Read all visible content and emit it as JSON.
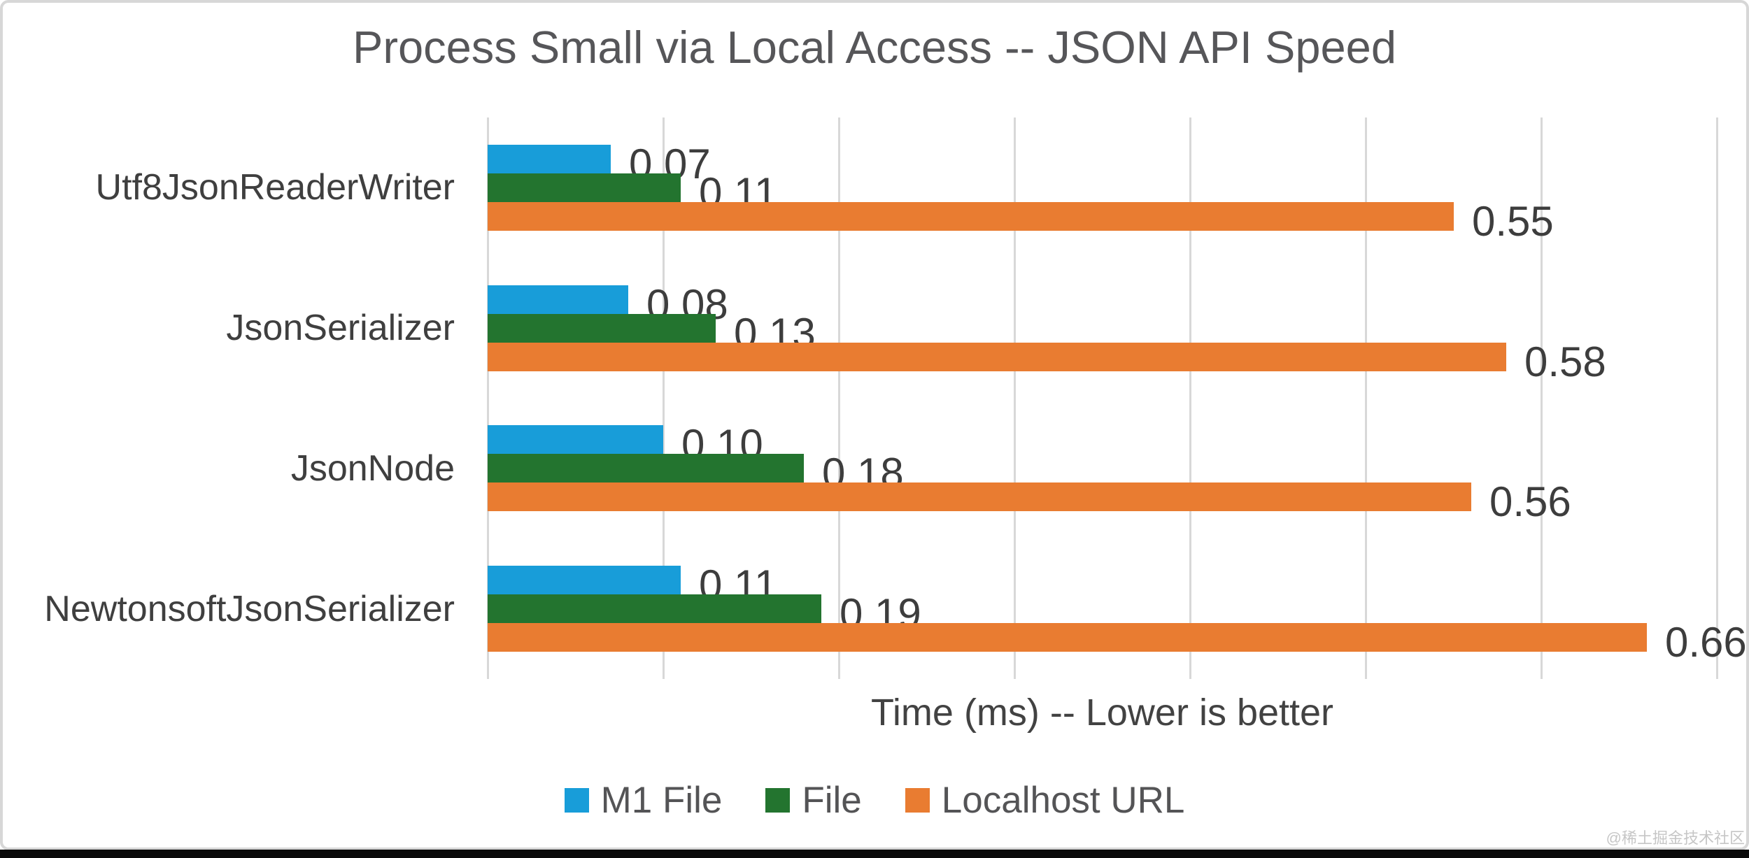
{
  "watermark": "@稀土掘金技术社区",
  "chart_data": {
    "type": "bar",
    "orientation": "horizontal",
    "title": "Process Small via Local Access -- JSON API Speed",
    "xlabel": "Time (ms) -- Lower is better",
    "categories": [
      "Utf8JsonReaderWriter",
      "JsonSerializer",
      "JsonNode",
      "NewtonsoftJsonSerializer"
    ],
    "series": [
      {
        "name": "M1 File",
        "color": "#189dd9",
        "values": [
          0.07,
          0.08,
          0.1,
          0.11
        ]
      },
      {
        "name": "File",
        "color": "#23742f",
        "values": [
          0.11,
          0.13,
          0.18,
          0.19
        ]
      },
      {
        "name": "Localhost URL",
        "color": "#e97c31",
        "values": [
          0.55,
          0.58,
          0.56,
          0.66
        ]
      }
    ],
    "data_labels": [
      [
        "0.07",
        "0.11",
        "0.55"
      ],
      [
        "0.08",
        "0.13",
        "0.58"
      ],
      [
        "0.10",
        "0.18",
        "0.56"
      ],
      [
        "0.11",
        "0.19",
        "0.66"
      ]
    ],
    "xlim": [
      0,
      0.7
    ],
    "grid_step": 0.1,
    "grid": true,
    "axis_tick_labels": false,
    "legend_position": "bottom",
    "gridline_color": "#d8d8d8"
  }
}
